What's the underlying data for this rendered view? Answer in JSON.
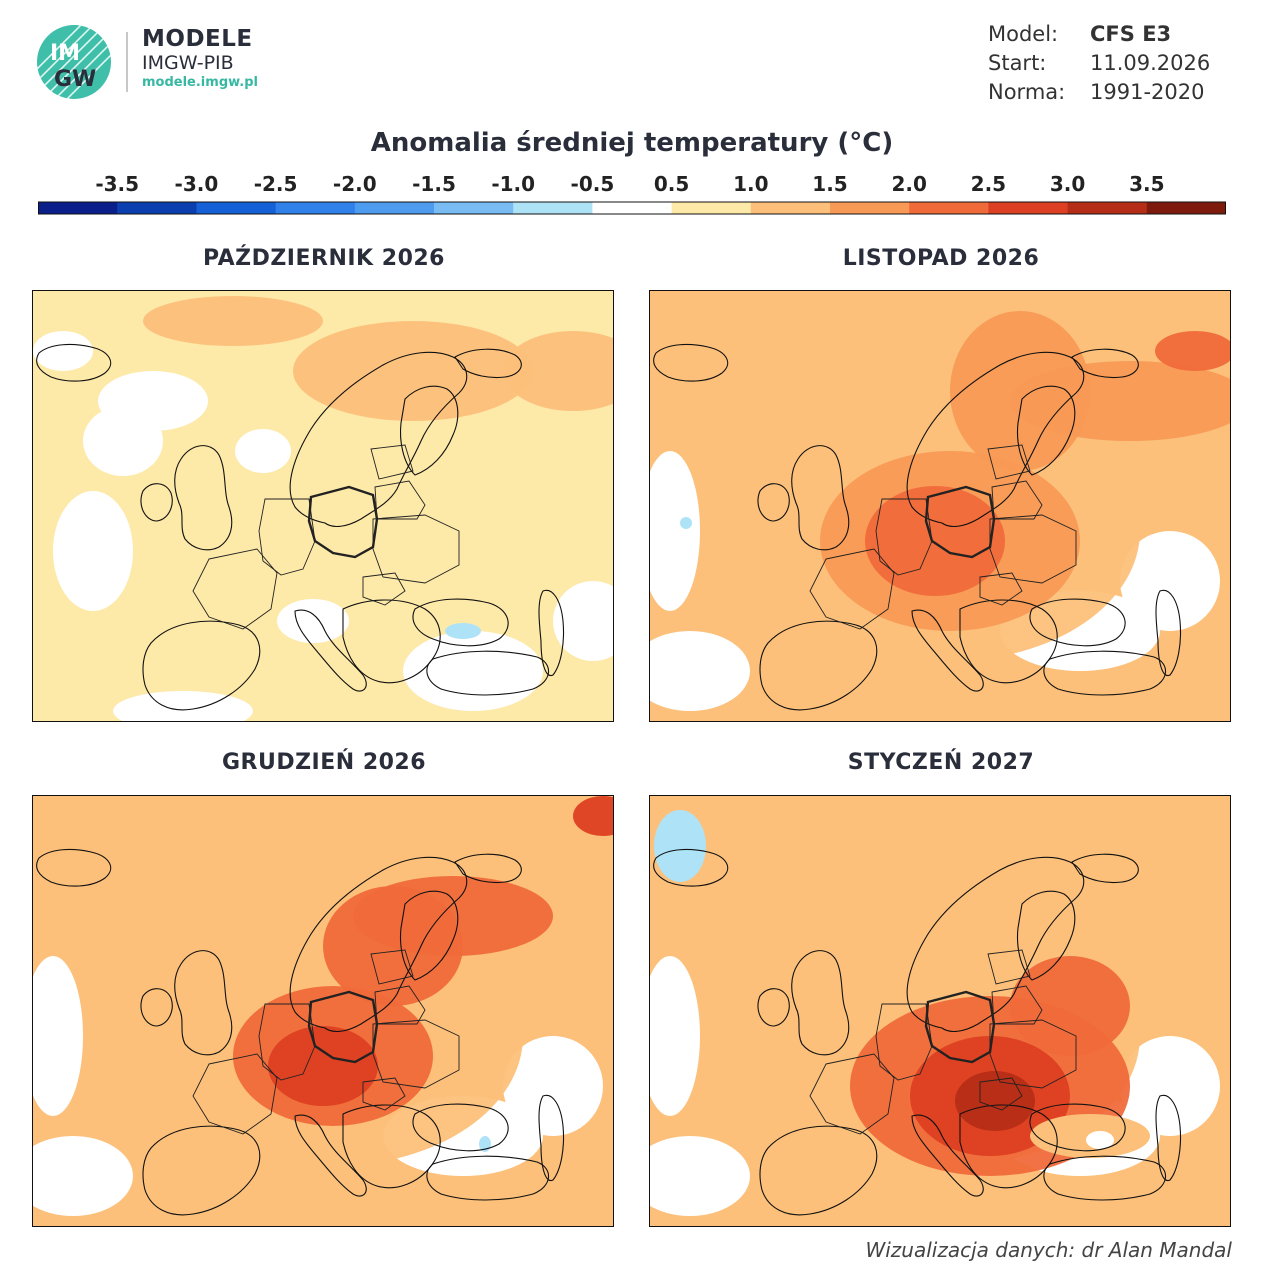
{
  "header": {
    "logo": {
      "mark_top": "IM",
      "mark_bottom": "GW",
      "brand_name": "MODELE",
      "brand_org": "IMGW-PIB",
      "brand_url": "modele.imgw.pl"
    },
    "meta": [
      {
        "key": "Model:",
        "value": "CFS E3",
        "bold": true
      },
      {
        "key": "Start:",
        "value": "11.09.2026",
        "bold": false
      },
      {
        "key": "Norma:",
        "value": "1991-2020",
        "bold": false
      }
    ]
  },
  "title": "Anomalia średniej temperatury (°C)",
  "colorbar": {
    "ticks": [
      "-3.5",
      "-3.0",
      "-2.5",
      "-2.0",
      "-1.5",
      "-1.0",
      "-0.5",
      "0.5",
      "1.0",
      "1.5",
      "2.0",
      "2.5",
      "3.0",
      "3.5"
    ],
    "colors": [
      "#0a1f8a",
      "#0b3fb0",
      "#1560d6",
      "#2f80e8",
      "#4e9cf0",
      "#79bcf4",
      "#aee3f7",
      "#ffffff",
      "#fde9a8",
      "#fcc07a",
      "#f89a55",
      "#f06a3a",
      "#dc3f21",
      "#b52d16",
      "#7d1a0c"
    ]
  },
  "panels": [
    {
      "id": "oct",
      "title": "PAŹDZIERNIK 2026",
      "intensity": 0
    },
    {
      "id": "nov",
      "title": "LISTOPAD 2026",
      "intensity": 1
    },
    {
      "id": "dec",
      "title": "GRUDZIEŃ 2026",
      "intensity": 2
    },
    {
      "id": "jan",
      "title": "STYCZEŃ 2027",
      "intensity": 3
    }
  ],
  "credit": "Wizualizacja danych: dr Alan Mandal"
}
